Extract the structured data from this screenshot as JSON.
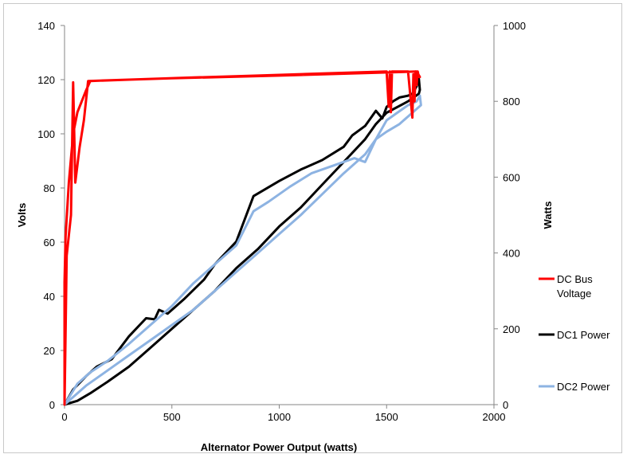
{
  "chart_data": {
    "type": "line",
    "title": "",
    "xlabel": "Alternator Power Output (watts)",
    "ylabel": "Volts",
    "y2label": "Watts",
    "xlim": [
      0,
      2000
    ],
    "ylim": [
      0,
      140
    ],
    "y2lim": [
      0,
      1000
    ],
    "x_ticks": [
      0,
      500,
      1000,
      1500,
      2000
    ],
    "y_ticks": [
      0,
      20,
      40,
      60,
      80,
      100,
      120,
      140
    ],
    "y2_ticks": [
      0,
      200,
      400,
      600,
      800,
      1000
    ],
    "grid": false,
    "legend_position": "right",
    "series": [
      {
        "name": "DC Bus Voltage",
        "axis": "left",
        "color": "#ff0000",
        "x": [
          0,
          0,
          5,
          20,
          40,
          60,
          80,
          100,
          120,
          300,
          600,
          900,
          1200,
          1500,
          1510,
          1515,
          1520,
          1525,
          1530,
          1560,
          1600,
          1620,
          1625,
          1630,
          1635,
          1640,
          1645,
          1650,
          1655,
          1640,
          1000,
          500,
          110,
          90,
          70,
          50,
          40,
          30,
          10,
          0
        ],
        "y": [
          0,
          45,
          62,
          82,
          100,
          108,
          112,
          116,
          119.5,
          120,
          120.8,
          121.5,
          122.3,
          123,
          110,
          123,
          108,
          123,
          123,
          123,
          123,
          106,
          122,
          112,
          123,
          118,
          123,
          121,
          121,
          123,
          121.5,
          120.5,
          119.5,
          105,
          95,
          82,
          119,
          70,
          55,
          0
        ]
      },
      {
        "name": "DC1 Power",
        "axis": "right",
        "color": "#000000",
        "x": [
          0,
          40,
          100,
          150,
          220,
          300,
          380,
          420,
          440,
          480,
          560,
          650,
          700,
          750,
          800,
          880,
          1000,
          1100,
          1200,
          1300,
          1340,
          1400,
          1450,
          1480,
          1500,
          1530,
          1560,
          1600,
          1620,
          1640,
          1650,
          1655,
          1650,
          1600,
          1500,
          1450,
          1400,
          1300,
          1200,
          1100,
          1000,
          900,
          800,
          700,
          600,
          500,
          400,
          300,
          200,
          120,
          60,
          0
        ],
        "y": [
          0,
          40,
          75,
          100,
          120,
          180,
          228,
          225,
          250,
          240,
          280,
          330,
          370,
          400,
          430,
          550,
          590,
          620,
          645,
          680,
          710,
          735,
          775,
          755,
          785,
          800,
          810,
          815,
          820,
          840,
          860,
          830,
          820,
          800,
          770,
          740,
          700,
          640,
          580,
          520,
          470,
          410,
          360,
          300,
          250,
          200,
          150,
          100,
          60,
          30,
          10,
          0
        ]
      },
      {
        "name": "DC2 Power",
        "axis": "right",
        "color": "#8db3e2",
        "x": [
          0,
          60,
          120,
          200,
          300,
          400,
          500,
          600,
          700,
          800,
          880,
          950,
          1050,
          1150,
          1250,
          1350,
          1400,
          1450,
          1500,
          1550,
          1600,
          1640,
          1655,
          1660,
          1640,
          1600,
          1560,
          1500,
          1450,
          1400,
          1300,
          1200,
          1100,
          1000,
          900,
          800,
          700,
          600,
          500,
          400,
          300,
          200,
          100,
          0
        ],
        "y": [
          0,
          55,
          85,
          115,
          160,
          210,
          260,
          320,
          370,
          420,
          510,
          535,
          575,
          610,
          630,
          650,
          640,
          700,
          750,
          770,
          790,
          800,
          815,
          790,
          780,
          760,
          740,
          720,
          700,
          660,
          610,
          555,
          500,
          450,
          400,
          350,
          300,
          250,
          210,
          170,
          130,
          90,
          50,
          0
        ]
      }
    ]
  }
}
